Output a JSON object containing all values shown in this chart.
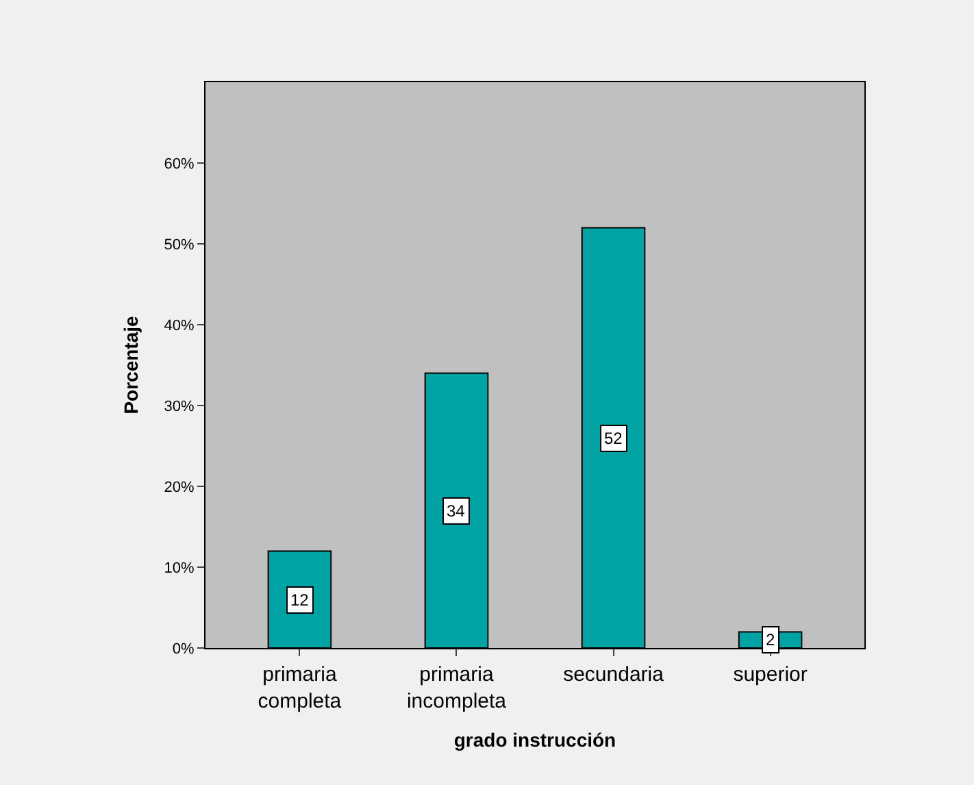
{
  "chart_data": {
    "type": "bar",
    "xlabel": "grado instrucción",
    "ylabel": "Porcentaje",
    "categories": [
      "primaria completa",
      "primaria incompleta",
      "secundaria",
      "superior"
    ],
    "values": [
      12,
      34,
      52,
      2
    ],
    "color": "#00a3a3",
    "data_labels": true,
    "ylim": [
      0,
      70
    ],
    "yticks": [
      {
        "value": 0,
        "label": "0%"
      },
      {
        "value": 10,
        "label": "10%"
      },
      {
        "value": 20,
        "label": "20%"
      },
      {
        "value": 30,
        "label": "30%"
      },
      {
        "value": 40,
        "label": "40%"
      },
      {
        "value": 50,
        "label": "50%"
      },
      {
        "value": 60,
        "label": "60%"
      }
    ],
    "grid": false,
    "legend": false
  }
}
